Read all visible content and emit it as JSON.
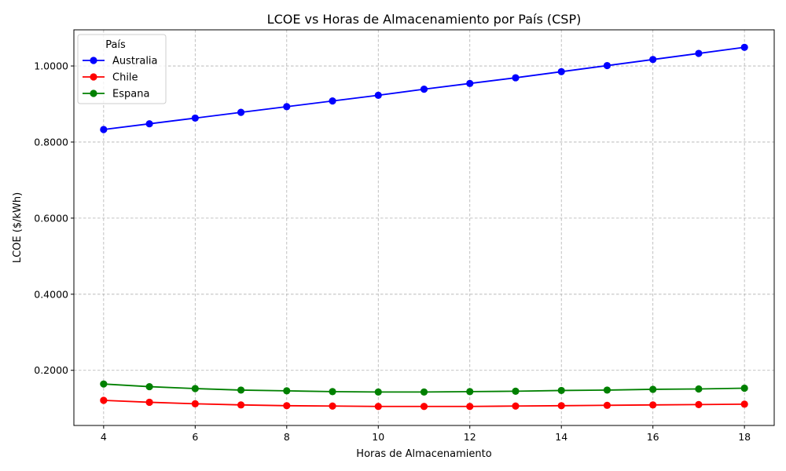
{
  "chart_data": {
    "type": "line",
    "title": "LCOE vs Horas de Almacenamiento por País (CSP)",
    "xlabel": "Horas de Almacenamiento",
    "ylabel": "LCOE ($/kWh)",
    "x": [
      4,
      5,
      6,
      7,
      8,
      9,
      10,
      11,
      12,
      13,
      14,
      15,
      16,
      17,
      18
    ],
    "xlim": [
      3.35,
      18.65
    ],
    "ylim": [
      0.055,
      1.095
    ],
    "xticks": [
      4,
      6,
      8,
      10,
      12,
      14,
      16,
      18
    ],
    "xtick_labels": [
      "4",
      "6",
      "8",
      "10",
      "12",
      "14",
      "16",
      "18"
    ],
    "yticks": [
      0.2,
      0.4,
      0.6,
      0.8,
      1.0
    ],
    "ytick_labels": [
      "0.2000",
      "0.4000",
      "0.6000",
      "0.8000",
      "1.0000"
    ],
    "grid": true,
    "legend": {
      "title": "País",
      "placement": "top-left"
    },
    "series": [
      {
        "name": "Australia",
        "color": "#0000ff",
        "values": [
          0.833,
          0.848,
          0.863,
          0.878,
          0.893,
          0.908,
          0.923,
          0.939,
          0.954,
          0.969,
          0.985,
          1.001,
          1.017,
          1.033,
          1.049
        ]
      },
      {
        "name": "Chile",
        "color": "#ff0000",
        "values": [
          0.121,
          0.116,
          0.112,
          0.109,
          0.107,
          0.106,
          0.105,
          0.105,
          0.105,
          0.106,
          0.107,
          0.108,
          0.109,
          0.11,
          0.111
        ]
      },
      {
        "name": "Espana",
        "color": "#008000",
        "values": [
          0.164,
          0.157,
          0.152,
          0.148,
          0.146,
          0.144,
          0.143,
          0.143,
          0.144,
          0.145,
          0.147,
          0.148,
          0.15,
          0.151,
          0.153
        ]
      }
    ]
  }
}
